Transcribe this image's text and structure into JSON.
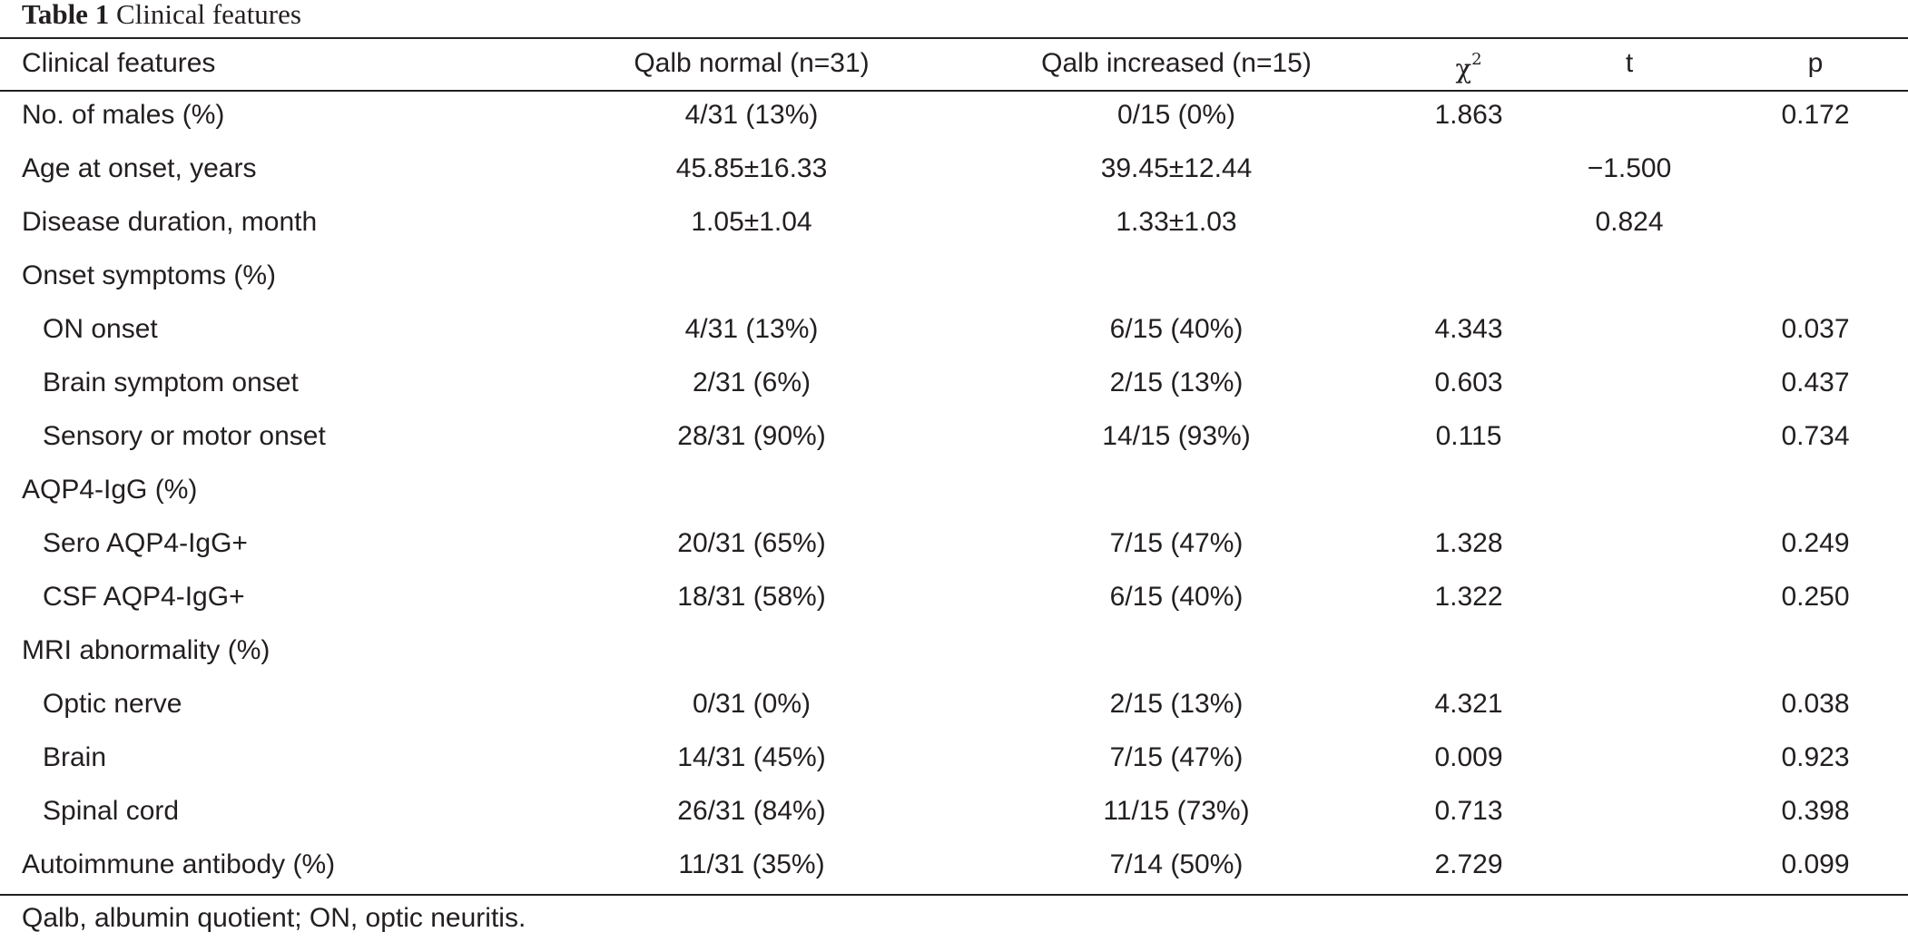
{
  "caption": {
    "label": "Table 1",
    "title": "Clinical features"
  },
  "header": {
    "feature": "Clinical features",
    "normal": "Qalb normal (n=31)",
    "increased": "Qalb increased (n=15)",
    "chi_symbol": "χ",
    "chi_sup": "2",
    "t": "t",
    "p": "p"
  },
  "rows": [
    {
      "feature": "No. of males (%)",
      "indent": false,
      "normal": "4/31 (13%)",
      "increased": "0/15 (0%)",
      "chi2": "1.863",
      "t": "",
      "p": "0.172"
    },
    {
      "feature": "Age at onset, years",
      "indent": false,
      "normal": "45.85±16.33",
      "increased": "39.45±12.44",
      "chi2": "",
      "t": "−1.500",
      "p": ""
    },
    {
      "feature": "Disease duration, month",
      "indent": false,
      "normal": "1.05±1.04",
      "increased": "1.33±1.03",
      "chi2": "",
      "t": "0.824",
      "p": ""
    },
    {
      "feature": "Onset symptoms (%)",
      "indent": false,
      "normal": "",
      "increased": "",
      "chi2": "",
      "t": "",
      "p": ""
    },
    {
      "feature": "ON onset",
      "indent": true,
      "normal": "4/31 (13%)",
      "increased": "6/15 (40%)",
      "chi2": "4.343",
      "t": "",
      "p": "0.037"
    },
    {
      "feature": "Brain symptom onset",
      "indent": true,
      "normal": "2/31 (6%)",
      "increased": "2/15 (13%)",
      "chi2": "0.603",
      "t": "",
      "p": "0.437"
    },
    {
      "feature": "Sensory or motor onset",
      "indent": true,
      "normal": "28/31 (90%)",
      "increased": "14/15 (93%)",
      "chi2": "0.115",
      "t": "",
      "p": "0.734"
    },
    {
      "feature": "AQP4-IgG (%)",
      "indent": false,
      "normal": "",
      "increased": "",
      "chi2": "",
      "t": "",
      "p": ""
    },
    {
      "feature": "Sero AQP4-IgG+",
      "indent": true,
      "normal": "20/31 (65%)",
      "increased": "7/15 (47%)",
      "chi2": "1.328",
      "t": "",
      "p": "0.249"
    },
    {
      "feature": "CSF AQP4-IgG+",
      "indent": true,
      "normal": "18/31 (58%)",
      "increased": "6/15 (40%)",
      "chi2": "1.322",
      "t": "",
      "p": "0.250"
    },
    {
      "feature": "MRI abnormality (%)",
      "indent": false,
      "normal": "",
      "increased": "",
      "chi2": "",
      "t": "",
      "p": ""
    },
    {
      "feature": "Optic nerve",
      "indent": true,
      "normal": "0/31 (0%)",
      "increased": "2/15 (13%)",
      "chi2": "4.321",
      "t": "",
      "p": "0.038"
    },
    {
      "feature": "Brain",
      "indent": true,
      "normal": "14/31 (45%)",
      "increased": "7/15 (47%)",
      "chi2": "0.009",
      "t": "",
      "p": "0.923"
    },
    {
      "feature": "Spinal cord",
      "indent": true,
      "normal": "26/31 (84%)",
      "increased": "11/15 (73%)",
      "chi2": "0.713",
      "t": "",
      "p": "0.398"
    },
    {
      "feature": "Autoimmune antibody (%)",
      "indent": false,
      "normal": "11/31 (35%)",
      "increased": "7/14 (50%)",
      "chi2": "2.729",
      "t": "",
      "p": "0.099"
    }
  ],
  "footnote": "Qalb, albumin quotient; ON, optic neuritis."
}
